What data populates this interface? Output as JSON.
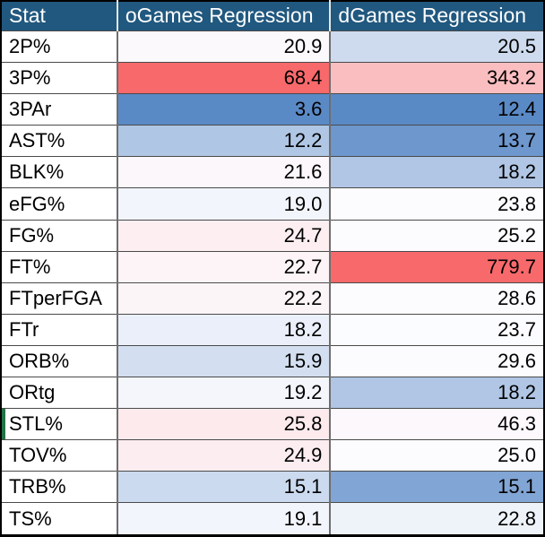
{
  "table": {
    "columns": [
      "Stat",
      "oGames Regression",
      "dGames Regression"
    ],
    "rows": [
      {
        "stat": "2P%",
        "o": "20.9",
        "o_bg": "#FCF9FC",
        "d": "20.5",
        "d_bg": "#CEDBEF",
        "marker": false
      },
      {
        "stat": "3P%",
        "o": "68.4",
        "o_bg": "#F8696B",
        "d": "343.2",
        "d_bg": "#FABEC0",
        "marker": false
      },
      {
        "stat": "3PAr",
        "o": "3.6",
        "o_bg": "#5A8AC6",
        "d": "12.4",
        "d_bg": "#5A8AC6",
        "marker": false
      },
      {
        "stat": "AST%",
        "o": "12.2",
        "o_bg": "#AFC6E4",
        "d": "13.7",
        "d_bg": "#6D97CD",
        "marker": false
      },
      {
        "stat": "BLK%",
        "o": "21.6",
        "o_bg": "#FCF7FA",
        "d": "18.2",
        "d_bg": "#B0C6E4",
        "marker": false
      },
      {
        "stat": "eFG%",
        "o": "19.0",
        "o_bg": "#F2F5FB",
        "d": "23.8",
        "d_bg": "#FCFCFF",
        "marker": false
      },
      {
        "stat": "FG%",
        "o": "24.7",
        "o_bg": "#FCEEF1",
        "d": "25.2",
        "d_bg": "#FCFCFF",
        "marker": false
      },
      {
        "stat": "FT%",
        "o": "22.7",
        "o_bg": "#FCF4F7",
        "d": "779.7",
        "d_bg": "#F8696B",
        "marker": false
      },
      {
        "stat": "FTperFGA",
        "o": "22.2",
        "o_bg": "#FCF5F8",
        "d": "28.6",
        "d_bg": "#FCFBFE",
        "marker": false
      },
      {
        "stat": "FTr",
        "o": "18.2",
        "o_bg": "#EAEFF9",
        "d": "23.7",
        "d_bg": "#FBFCFF",
        "marker": false
      },
      {
        "stat": "ORB%",
        "o": "15.9",
        "o_bg": "#D3DFF1",
        "d": "29.6",
        "d_bg": "#FCFBFE",
        "marker": false
      },
      {
        "stat": "ORtg",
        "o": "19.2",
        "o_bg": "#F4F6FC",
        "d": "18.2",
        "d_bg": "#B0C6E4",
        "marker": false
      },
      {
        "stat": "STL%",
        "o": "25.8",
        "o_bg": "#FCEAED",
        "d": "46.3",
        "d_bg": "#FCF8FB",
        "marker": true
      },
      {
        "stat": "TOV%",
        "o": "24.9",
        "o_bg": "#FCEDF0",
        "d": "25.0",
        "d_bg": "#FCFCFF",
        "marker": false
      },
      {
        "stat": "TRB%",
        "o": "15.1",
        "o_bg": "#CBDAEE",
        "d": "15.1",
        "d_bg": "#81A5D4",
        "marker": false
      },
      {
        "stat": "TS%",
        "o": "19.1",
        "o_bg": "#F3F5FC",
        "d": "22.8",
        "d_bg": "#EEF3FA",
        "marker": false
      }
    ]
  },
  "colors": {
    "header_bg": "#21587F",
    "header_text": "#FFFFFF",
    "scale_low_blue": "#5A8AC6",
    "scale_mid_white": "#FCFCFF",
    "scale_high_red": "#F8696B",
    "selection_green": "#217346",
    "outer_border": "#000000"
  }
}
